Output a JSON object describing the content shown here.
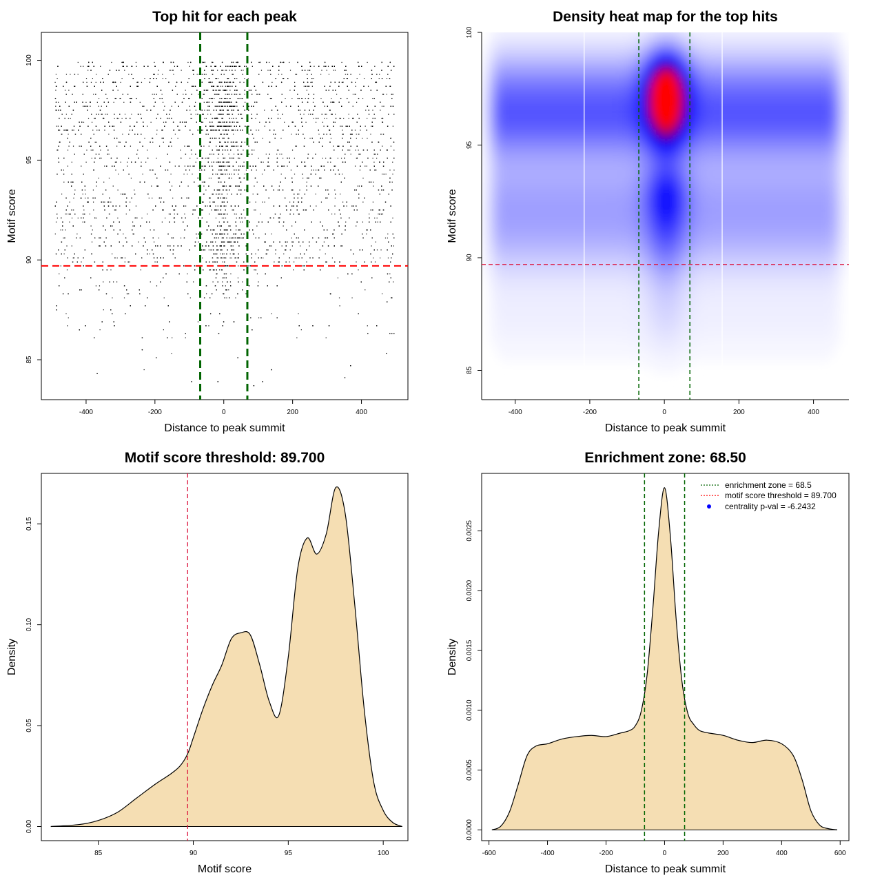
{
  "colors": {
    "threshold_line": "#ff0000",
    "zone_line": "#006400",
    "density_fill": "#f5deb3",
    "heat_low": "#ffffff",
    "heat_mid": "#0000ff",
    "heat_high": "#ff0000"
  },
  "chart_data": [
    {
      "type": "scatter",
      "title": "Top hit for each peak",
      "xlabel": "Distance to peak summit",
      "ylabel": "Motif score",
      "xlim": [
        -530,
        535
      ],
      "ylim": [
        83,
        101.4
      ],
      "xticks": [
        -400,
        -200,
        0,
        200,
        400
      ],
      "yticks": [
        85,
        90,
        95,
        100
      ],
      "threshold_y": 89.7,
      "zone_x": [
        -68.5,
        68.5
      ],
      "points_description_values": {
        "x_range": [
          -490,
          495
        ],
        "y_range": [
          83.7,
          100
        ],
        "center_dense_x_range": [
          -40,
          40
        ],
        "high_density_y_range": [
          90,
          100
        ]
      }
    },
    {
      "type": "heatmap",
      "title": "Density heat map for the top hits",
      "xlabel": "Distance to peak summit",
      "ylabel": "Motif score",
      "xlim": [
        -490,
        495
      ],
      "ylim": [
        83.7,
        100
      ],
      "xticks": [
        -400,
        -200,
        0,
        200,
        400
      ],
      "yticks": [
        85,
        90,
        95,
        100
      ],
      "threshold_y": 89.7,
      "zone_x": [
        -68.5,
        68.5
      ],
      "peak_center": [
        5,
        97.6
      ],
      "secondary_peak": [
        5,
        92.8
      ]
    },
    {
      "type": "area",
      "title": "Motif score threshold: 89.700",
      "xlabel": "Motif score",
      "ylabel": "Density",
      "xlim": [
        82,
        101.3
      ],
      "ylim": [
        -0.007,
        0.175
      ],
      "xticks": [
        85,
        90,
        95,
        100
      ],
      "yticks": [
        "0.00",
        "0.05",
        "0.10",
        "0.15"
      ],
      "threshold_x": 89.7,
      "x": [
        82.5,
        84,
        85,
        86,
        87,
        88,
        88.8,
        89.3,
        89.7,
        90,
        90.5,
        91,
        91.5,
        92,
        92.5,
        93,
        93.5,
        94,
        94.5,
        95,
        95.5,
        96,
        96.5,
        97,
        97.5,
        98,
        98.5,
        99,
        99.5,
        100,
        100.5,
        101
      ],
      "y": [
        0,
        0.001,
        0.003,
        0.007,
        0.014,
        0.021,
        0.026,
        0.03,
        0.036,
        0.044,
        0.058,
        0.07,
        0.08,
        0.093,
        0.096,
        0.095,
        0.08,
        0.062,
        0.055,
        0.084,
        0.128,
        0.143,
        0.135,
        0.145,
        0.168,
        0.155,
        0.11,
        0.058,
        0.022,
        0.008,
        0.002,
        0
      ]
    },
    {
      "type": "area",
      "title": "Enrichment zone: 68.50",
      "xlabel": "Distance to peak summit",
      "ylabel": "Density",
      "xlim": [
        -625,
        630
      ],
      "ylim": [
        -9e-05,
        0.00298
      ],
      "xticks": [
        -600,
        -400,
        -200,
        0,
        200,
        400,
        600
      ],
      "yticks": [
        "0.0000",
        "0.0005",
        "0.0010",
        "0.0015",
        "0.0020",
        "0.0025"
      ],
      "zone_x": [
        -68.5,
        68.5
      ],
      "x": [
        -590,
        -560,
        -530,
        -500,
        -470,
        -440,
        -400,
        -350,
        -300,
        -250,
        -200,
        -150,
        -120,
        -100,
        -80,
        -60,
        -40,
        -20,
        0,
        20,
        40,
        60,
        80,
        100,
        120,
        150,
        200,
        250,
        300,
        350,
        400,
        440,
        470,
        500,
        530,
        560,
        590
      ],
      "y": [
        0,
        3e-05,
        0.00015,
        0.00038,
        0.00062,
        0.0007,
        0.00072,
        0.00076,
        0.00078,
        0.00079,
        0.00078,
        0.00081,
        0.00083,
        0.00087,
        0.00099,
        0.00129,
        0.00185,
        0.0025,
        0.00286,
        0.00245,
        0.00175,
        0.00123,
        0.00097,
        0.00088,
        0.00083,
        0.00081,
        0.00079,
        0.00075,
        0.00073,
        0.00075,
        0.00072,
        0.00062,
        0.00042,
        0.00016,
        4e-05,
        1e-05,
        0
      ],
      "legend": [
        "enrichment zone = 68.5",
        "motif score threshold = 89.700",
        "centrality p-val = -6.2432"
      ],
      "legend_position": "top-right"
    }
  ]
}
